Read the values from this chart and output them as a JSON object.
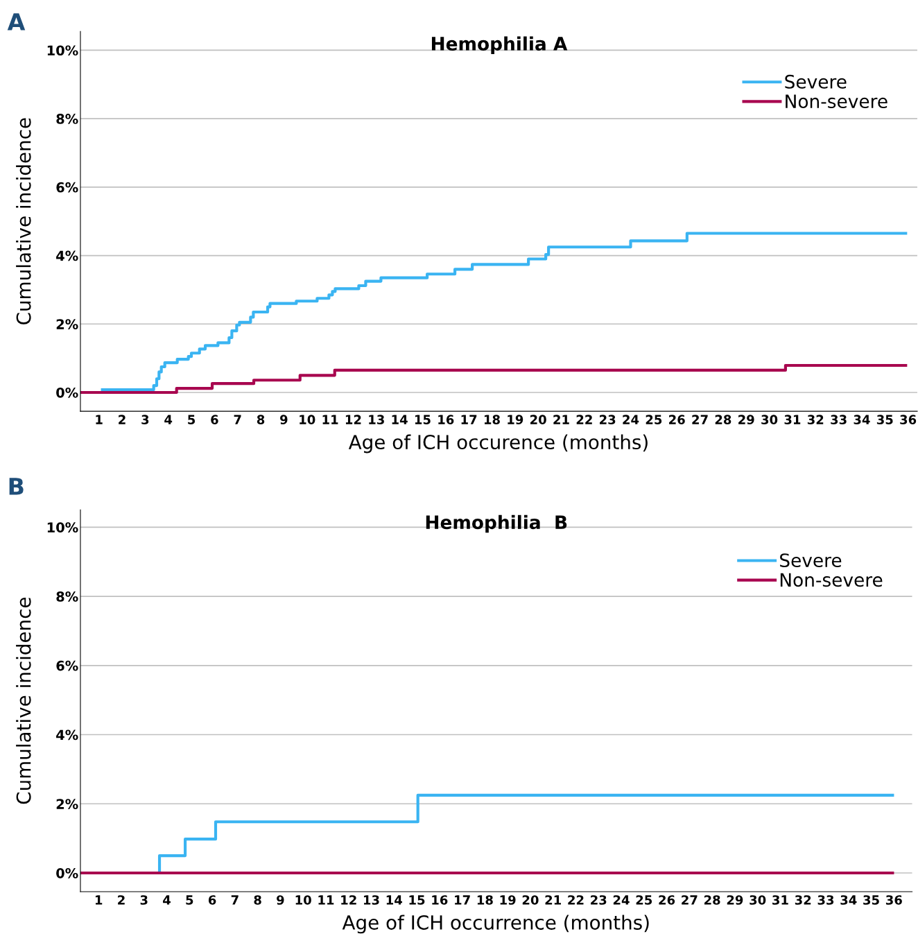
{
  "chart_data": [
    {
      "type": "step",
      "title": "Hemophilia A",
      "xlabel": "Age of ICH occurence (months)",
      "ylabel": "Cumulative incidence",
      "annotations": [
        "A"
      ],
      "xlim": [
        0.2,
        36.4
      ],
      "xticks": [
        1,
        2,
        3,
        4,
        5,
        6,
        7,
        8,
        9,
        10,
        11,
        12,
        13,
        14,
        15,
        16,
        17,
        18,
        19,
        20,
        21,
        22,
        23,
        24,
        25,
        26,
        27,
        28,
        29,
        30,
        31,
        32,
        33,
        34,
        35,
        36
      ],
      "ylim": [
        -0.55,
        10.55
      ],
      "yticks": [
        {
          "value": 0,
          "label": "0%"
        },
        {
          "value": 2,
          "label": "2%"
        },
        {
          "value": 4,
          "label": "4%"
        },
        {
          "value": 6,
          "label": "6%"
        },
        {
          "value": 8,
          "label": "8%"
        },
        {
          "value": 10,
          "label": "10%"
        }
      ],
      "grid": "y",
      "legend": "top right",
      "line_style": "solid",
      "series": [
        {
          "name": "Severe",
          "color": "#3ab4f2",
          "x": [
            1.15,
            3.37,
            3.5,
            3.6,
            3.7,
            3.85,
            4.39,
            4.87,
            5.0,
            5.35,
            5.6,
            6.15,
            6.63,
            6.75,
            6.96,
            7.08,
            7.56,
            7.68,
            8.3,
            8.4,
            9.54,
            10.44,
            10.95,
            11.1,
            11.22,
            12.24,
            12.54,
            13.2,
            15.2,
            16.4,
            17.15,
            19.58,
            20.33,
            20.45,
            24.0,
            26.44,
            35.9
          ],
          "values": [
            0.08,
            0.2,
            0.4,
            0.6,
            0.75,
            0.87,
            0.97,
            1.05,
            1.15,
            1.27,
            1.37,
            1.45,
            1.6,
            1.8,
            1.97,
            2.05,
            2.2,
            2.35,
            2.5,
            2.6,
            2.67,
            2.75,
            2.85,
            2.95,
            3.03,
            3.12,
            3.25,
            3.35,
            3.46,
            3.6,
            3.74,
            3.9,
            4.03,
            4.25,
            4.43,
            4.65,
            4.65
          ]
        },
        {
          "name": "Non-severe",
          "color": "#a8064f",
          "x": [
            0.2,
            4.36,
            5.9,
            7.7,
            9.7,
            11.2,
            30.7,
            35.9
          ],
          "values": [
            0,
            0.12,
            0.26,
            0.36,
            0.5,
            0.65,
            0.79,
            0.79
          ]
        }
      ]
    },
    {
      "type": "step",
      "title": "Hemophilia  B",
      "xlabel": "Age of ICH occurrence (months)",
      "ylabel": "Cumulative incidence",
      "annotations": [
        "B"
      ],
      "xlim": [
        0.2,
        36.8
      ],
      "xticks": [
        1,
        2,
        3,
        4,
        5,
        6,
        7,
        8,
        9,
        10,
        11,
        12,
        13,
        14,
        15,
        16,
        17,
        18,
        19,
        20,
        21,
        22,
        23,
        24,
        25,
        26,
        27,
        28,
        29,
        30,
        31,
        32,
        33,
        34,
        35,
        36
      ],
      "ylim": [
        -0.54,
        10.5
      ],
      "yticks": [
        {
          "value": 0,
          "label": "0%"
        },
        {
          "value": 2,
          "label": "2%"
        },
        {
          "value": 4,
          "label": "4%"
        },
        {
          "value": 6,
          "label": "6%"
        },
        {
          "value": 8,
          "label": "8%"
        },
        {
          "value": 10,
          "label": "10%"
        }
      ],
      "grid": "y",
      "legend": "top right",
      "line_style": "solid",
      "series": [
        {
          "name": "Severe",
          "color": "#3ab4f2",
          "x": [
            3.68,
            3.68,
            4.81,
            6.15,
            15.05,
            35.94
          ],
          "values": [
            0,
            0.5,
            0.98,
            1.48,
            2.25,
            2.25
          ]
        },
        {
          "name": "Non-severe",
          "color": "#a8064f",
          "x": [
            0.2,
            35.94
          ],
          "values": [
            0,
            0
          ]
        }
      ]
    }
  ]
}
